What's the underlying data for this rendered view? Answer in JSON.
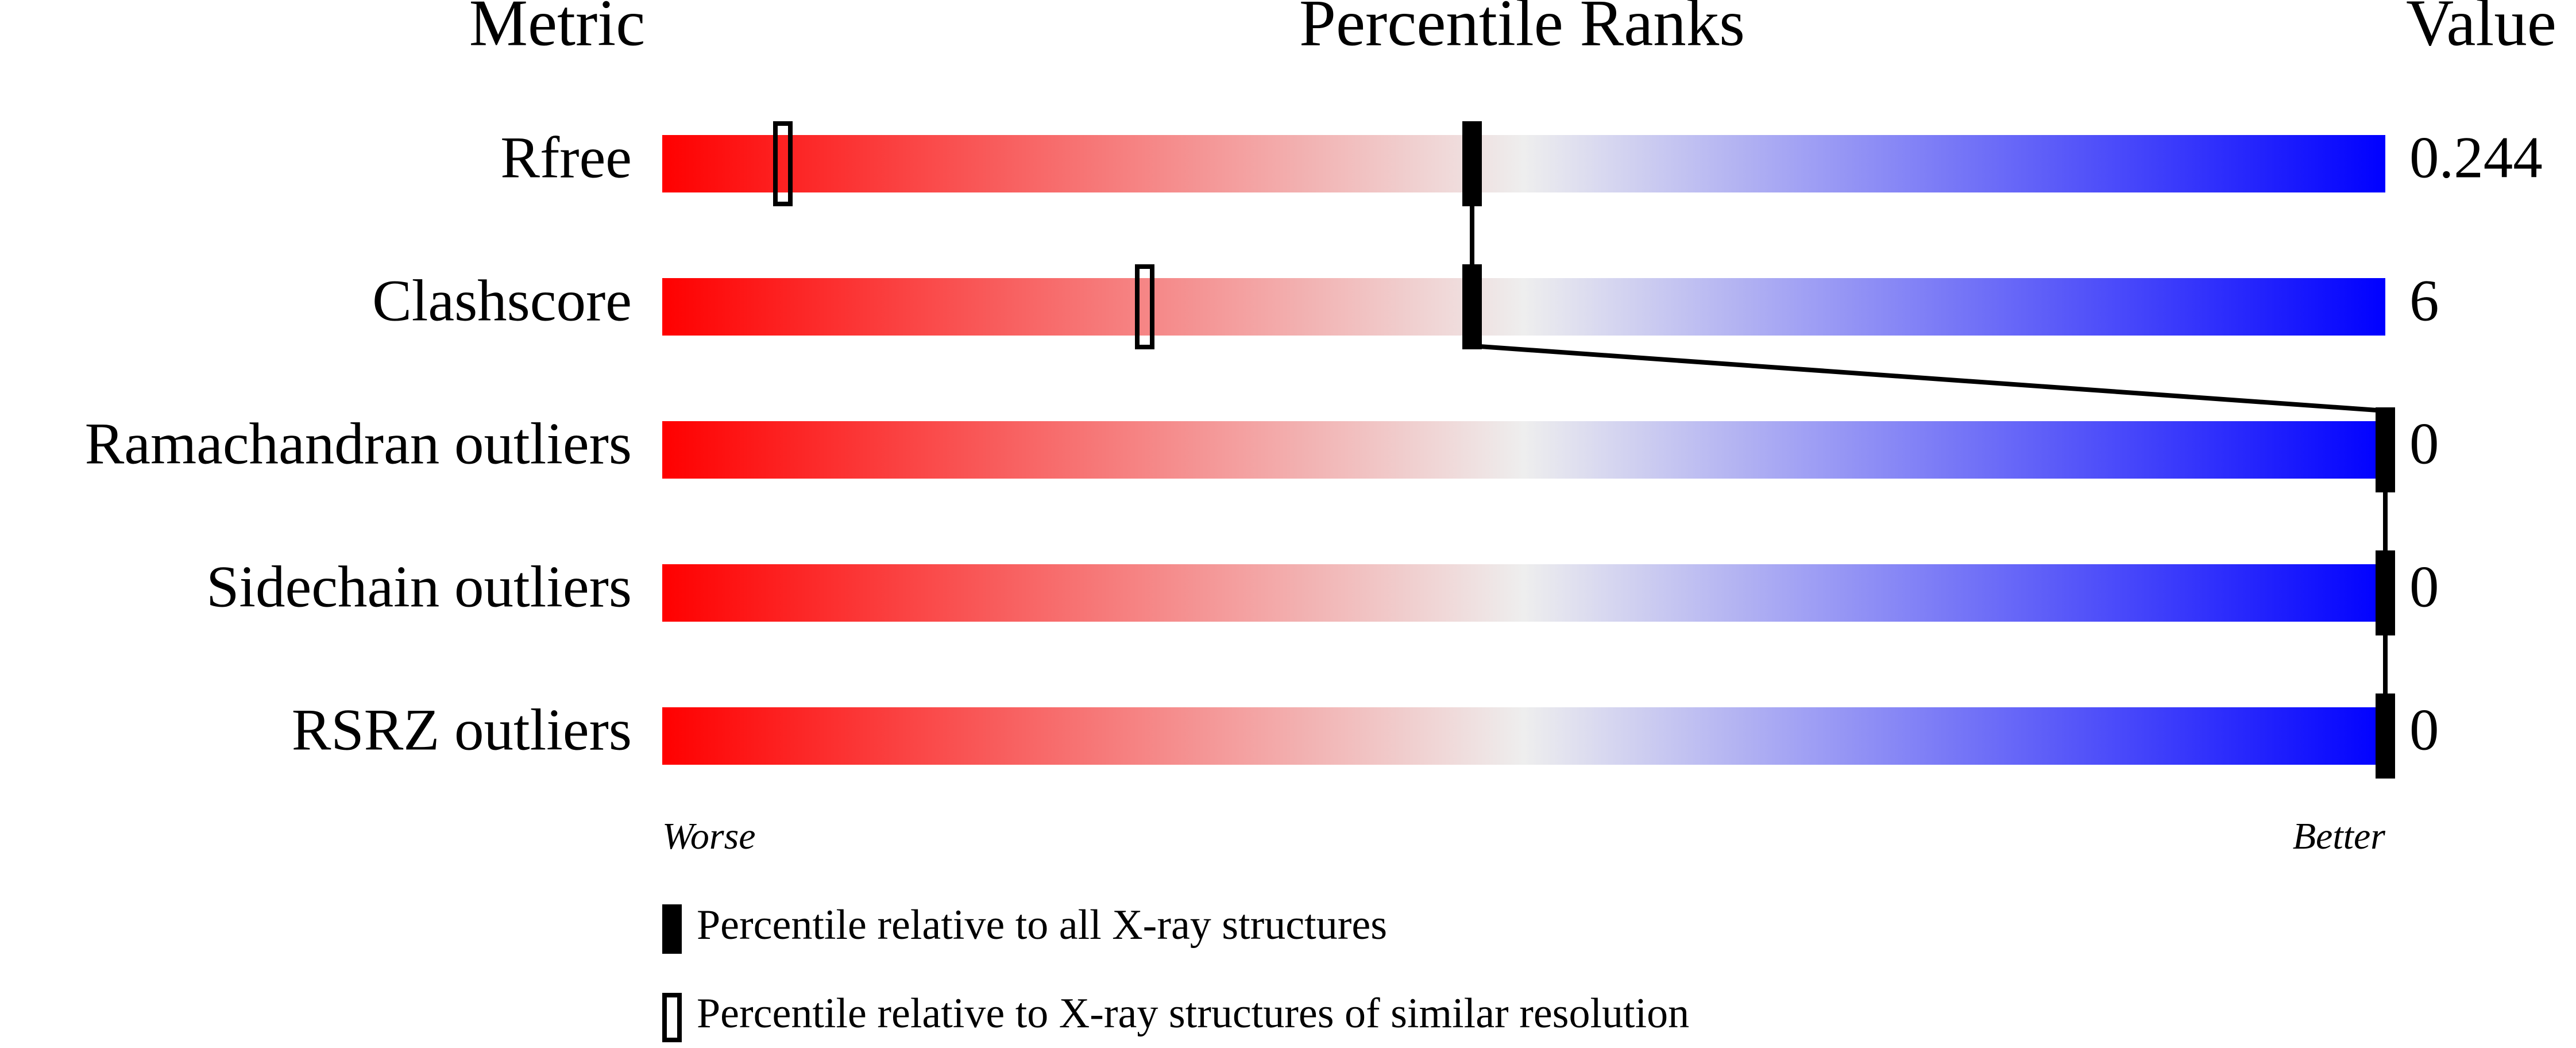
{
  "chart_data": {
    "type": "percentile-slider",
    "headers": {
      "metric": "Metric",
      "ranks": "Percentile Ranks",
      "value": "Value"
    },
    "categories": [
      "Rfree",
      "Clashscore",
      "Ramachandran outliers",
      "Sidechain outliers",
      "RSRZ outliers"
    ],
    "series": [
      {
        "name": "Percentile relative to all X-ray structures",
        "style": "filled",
        "color": "#000000",
        "values": [
          47,
          47,
          100,
          100,
          100
        ]
      },
      {
        "name": "Percentile relative to X-ray structures of similar resolution",
        "style": "open",
        "color": "#000000",
        "values": [
          7,
          28,
          null,
          null,
          null
        ]
      }
    ],
    "metric_values": [
      0.244,
      6,
      0,
      0,
      0
    ],
    "xlim": [
      0,
      100
    ],
    "axis_ends": {
      "low": "Worse",
      "high": "Better"
    },
    "gradient": [
      "#ff0000",
      "#eeeeee",
      "#0000ff"
    ]
  }
}
